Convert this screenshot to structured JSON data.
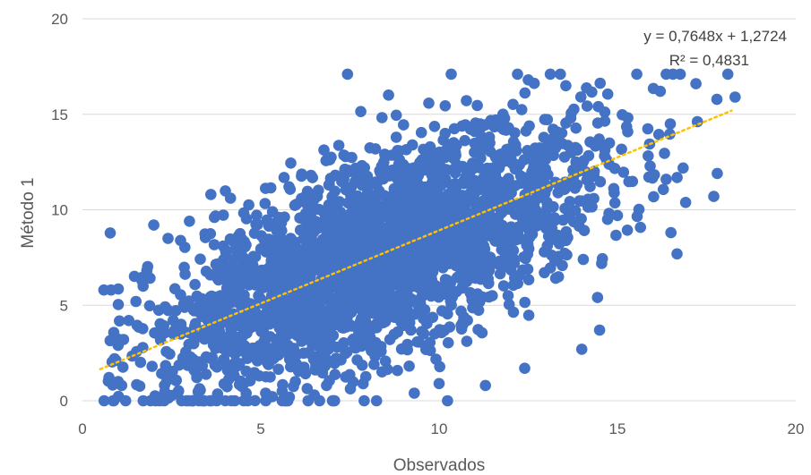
{
  "chart_data": {
    "type": "scatter",
    "title": "",
    "xlabel": "Observados",
    "ylabel": "Método 1",
    "xlim": [
      0,
      20
    ],
    "ylim": [
      0,
      20
    ],
    "x_ticks": [
      "0",
      "5",
      "10",
      "15",
      "20"
    ],
    "y_ticks": [
      "0",
      "5",
      "10",
      "15",
      "20"
    ],
    "grid": "horizontal",
    "colors": {
      "points": "#4472C4",
      "trendline": "#FFC000",
      "grid": "#D9D9D9",
      "text": "#595959"
    },
    "series": [
      {
        "points_sample": [
          [
            0.6,
            5.8
          ],
          [
            0.8,
            5.8
          ],
          [
            0.9,
            2.2
          ],
          [
            1.0,
            2.9
          ],
          [
            1.1,
            0.8
          ],
          [
            1.3,
            4.2
          ],
          [
            1.5,
            5.2
          ],
          [
            1.7,
            6.0
          ],
          [
            2.0,
            9.2
          ],
          [
            2.3,
            0.3
          ],
          [
            2.4,
            8.5
          ],
          [
            3.0,
            9.4
          ],
          [
            3.6,
            10.8
          ],
          [
            3.7,
            9.6
          ],
          [
            5.6,
            0.5
          ],
          [
            6.5,
            0.3
          ],
          [
            7.9,
            0.0
          ],
          [
            8.8,
            13.8
          ],
          [
            10.0,
            0.9
          ],
          [
            11.0,
            14.1
          ],
          [
            11.3,
            0.8
          ],
          [
            12.4,
            1.7
          ],
          [
            12.5,
            16.8
          ],
          [
            13.4,
            17.1
          ],
          [
            14.0,
            2.7
          ],
          [
            14.5,
            3.7
          ],
          [
            15.0,
            9.7
          ],
          [
            16.2,
            16.2
          ],
          [
            16.5,
            8.8
          ],
          [
            17.2,
            16.6
          ],
          [
            17.7,
            10.7
          ],
          [
            17.8,
            11.9
          ],
          [
            18.3,
            15.9
          ]
        ]
      }
    ],
    "trendline": {
      "slope": 0.7648,
      "intercept": 1.2724,
      "x_range": [
        0.5,
        18.2
      ],
      "equation_label": "y = 0,7648x + 1,2724",
      "r2_label": "R² = 0,4831"
    }
  }
}
